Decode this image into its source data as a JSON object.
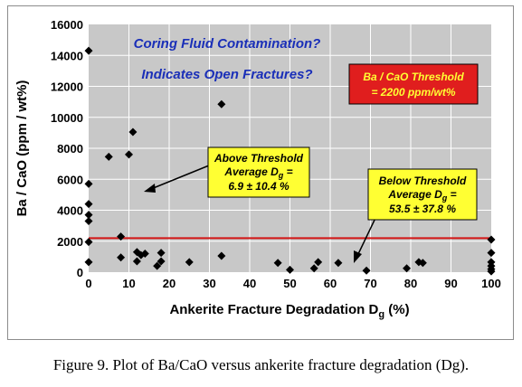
{
  "chart_data": {
    "type": "scatter",
    "xlabel_main": "Ankerite Fracture Degradation D",
    "xlabel_sub": "g",
    "xlabel_unit": "  (%)",
    "ylabel": "Ba / CaO  (ppm / wt%)",
    "xlim": [
      0,
      100
    ],
    "ylim": [
      0,
      16000
    ],
    "x_ticks": [
      0,
      10,
      20,
      30,
      40,
      50,
      60,
      70,
      80,
      90,
      100
    ],
    "y_ticks": [
      0,
      2000,
      4000,
      6000,
      8000,
      10000,
      12000,
      14000,
      16000
    ],
    "y_tick_labels": [
      "0",
      "2000",
      "4000",
      "6000",
      "8000",
      "10000",
      "12000",
      "14000",
      "16000"
    ],
    "grid": true,
    "threshold": 2200,
    "colors": {
      "plot_bg": "#c8c8c8",
      "grid": "#ffffff",
      "marker": "#000000",
      "threshold_line": "#d21414",
      "annotation_blue": "#1a2fb8",
      "callout_yellow": "#ffff33",
      "callout_red": "#e01e1e"
    },
    "points": [
      {
        "x": 0,
        "y": 14300
      },
      {
        "x": 0,
        "y": 5700
      },
      {
        "x": 0,
        "y": 4400
      },
      {
        "x": 0,
        "y": 3700
      },
      {
        "x": 0,
        "y": 3300
      },
      {
        "x": 0,
        "y": 1950
      },
      {
        "x": 0,
        "y": 650
      },
      {
        "x": 5,
        "y": 7450
      },
      {
        "x": 8,
        "y": 2300
      },
      {
        "x": 8,
        "y": 950
      },
      {
        "x": 10,
        "y": 7600
      },
      {
        "x": 11,
        "y": 9050
      },
      {
        "x": 12,
        "y": 1300
      },
      {
        "x": 12,
        "y": 700
      },
      {
        "x": 13,
        "y": 1100
      },
      {
        "x": 14,
        "y": 1200
      },
      {
        "x": 17,
        "y": 400
      },
      {
        "x": 18,
        "y": 1250
      },
      {
        "x": 18,
        "y": 700
      },
      {
        "x": 25,
        "y": 650
      },
      {
        "x": 33,
        "y": 10850
      },
      {
        "x": 33,
        "y": 1050
      },
      {
        "x": 47,
        "y": 600
      },
      {
        "x": 50,
        "y": 150
      },
      {
        "x": 56,
        "y": 250
      },
      {
        "x": 57,
        "y": 650
      },
      {
        "x": 62,
        "y": 600
      },
      {
        "x": 69,
        "y": 100
      },
      {
        "x": 79,
        "y": 250
      },
      {
        "x": 82,
        "y": 650
      },
      {
        "x": 83,
        "y": 600
      },
      {
        "x": 100,
        "y": 2100
      },
      {
        "x": 100,
        "y": 1250
      },
      {
        "x": 100,
        "y": 650
      },
      {
        "x": 100,
        "y": 400
      },
      {
        "x": 100,
        "y": 200
      },
      {
        "x": 100,
        "y": 50
      }
    ],
    "annotations": {
      "line1": "Coring Fluid Contamination?",
      "line2": "Indicates Open Fractures?",
      "threshold_box": [
        "Ba / CaO Threshold",
        "= 2200 ppm/wt%"
      ],
      "above_box": {
        "line1": "Above Threshold",
        "line2_main": "Average D",
        "line2_sub": "g",
        "line2_tail": " =",
        "line3": "6.9 ± 10.4 %"
      },
      "below_box": {
        "line1": "Below Threshold",
        "line2_main": "Average D",
        "line2_sub": "g",
        "line2_tail": " =",
        "line3": "53.5 ± 37.8 %"
      }
    }
  },
  "caption": "Figure 9.  Plot of Ba/CaO versus ankerite fracture degradation (Dg)."
}
